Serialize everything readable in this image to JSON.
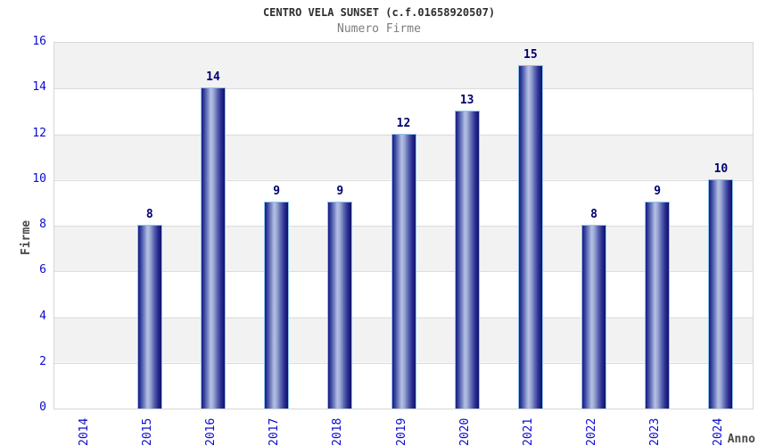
{
  "chart_data": {
    "type": "bar",
    "title": "CENTRO VELA SUNSET (c.f.01658920507)",
    "subtitle": "Numero Firme",
    "xlabel": "Anno",
    "ylabel": "Firme",
    "categories": [
      "2014",
      "2015",
      "2016",
      "2017",
      "2018",
      "2019",
      "2020",
      "2021",
      "2022",
      "2023",
      "2024"
    ],
    "values": [
      0,
      8,
      14,
      9,
      9,
      12,
      13,
      15,
      8,
      9,
      10
    ],
    "ylim": [
      0,
      16
    ],
    "yticks": [
      0,
      2,
      4,
      6,
      8,
      10,
      12,
      14,
      16
    ],
    "grid": "horizontal alternating bands every 2 units, light gridlines at even ticks",
    "legend_position": "none",
    "colors": {
      "bar_dark": "#14147a",
      "bar_highlight": "#b7c1e4",
      "bar_border": "#8ec6ea",
      "tick_label": "#0a0ad0",
      "bar_value_label": "#000070",
      "title_text": "#2d2d2d",
      "subtitle_text": "#7d7d7d",
      "axis_label_text": "#4a4a4a",
      "band_gray": "#f2f2f2",
      "plot_border": "#d6d6d6"
    }
  }
}
